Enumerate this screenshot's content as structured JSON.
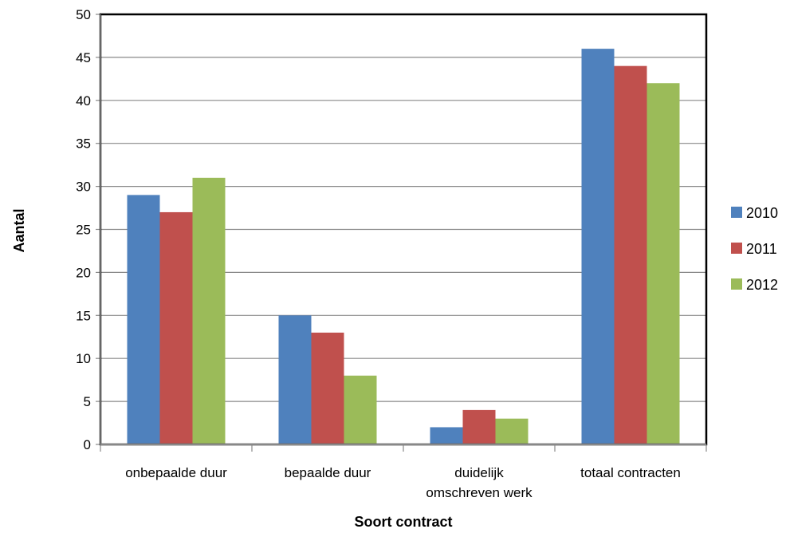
{
  "chart_data": {
    "type": "bar",
    "title": "",
    "xlabel": "Soort contract",
    "ylabel": "Aantal",
    "ylim": [
      0,
      50
    ],
    "yticks": [
      0,
      5,
      10,
      15,
      20,
      25,
      30,
      35,
      40,
      45,
      50
    ],
    "grid": true,
    "legend_position": "right",
    "categories": [
      [
        "onbepaalde duur"
      ],
      [
        "bepaalde duur"
      ],
      [
        "duidelijk",
        "omschreven werk"
      ],
      [
        "totaal contracten"
      ]
    ],
    "series": [
      {
        "name": "2010",
        "color": "#4F81BD",
        "values": [
          29,
          15,
          2,
          46
        ]
      },
      {
        "name": "2011",
        "color": "#C0504D",
        "values": [
          27,
          13,
          4,
          44
        ]
      },
      {
        "name": "2012",
        "color": "#9BBB59",
        "values": [
          31,
          8,
          3,
          42
        ]
      }
    ]
  }
}
